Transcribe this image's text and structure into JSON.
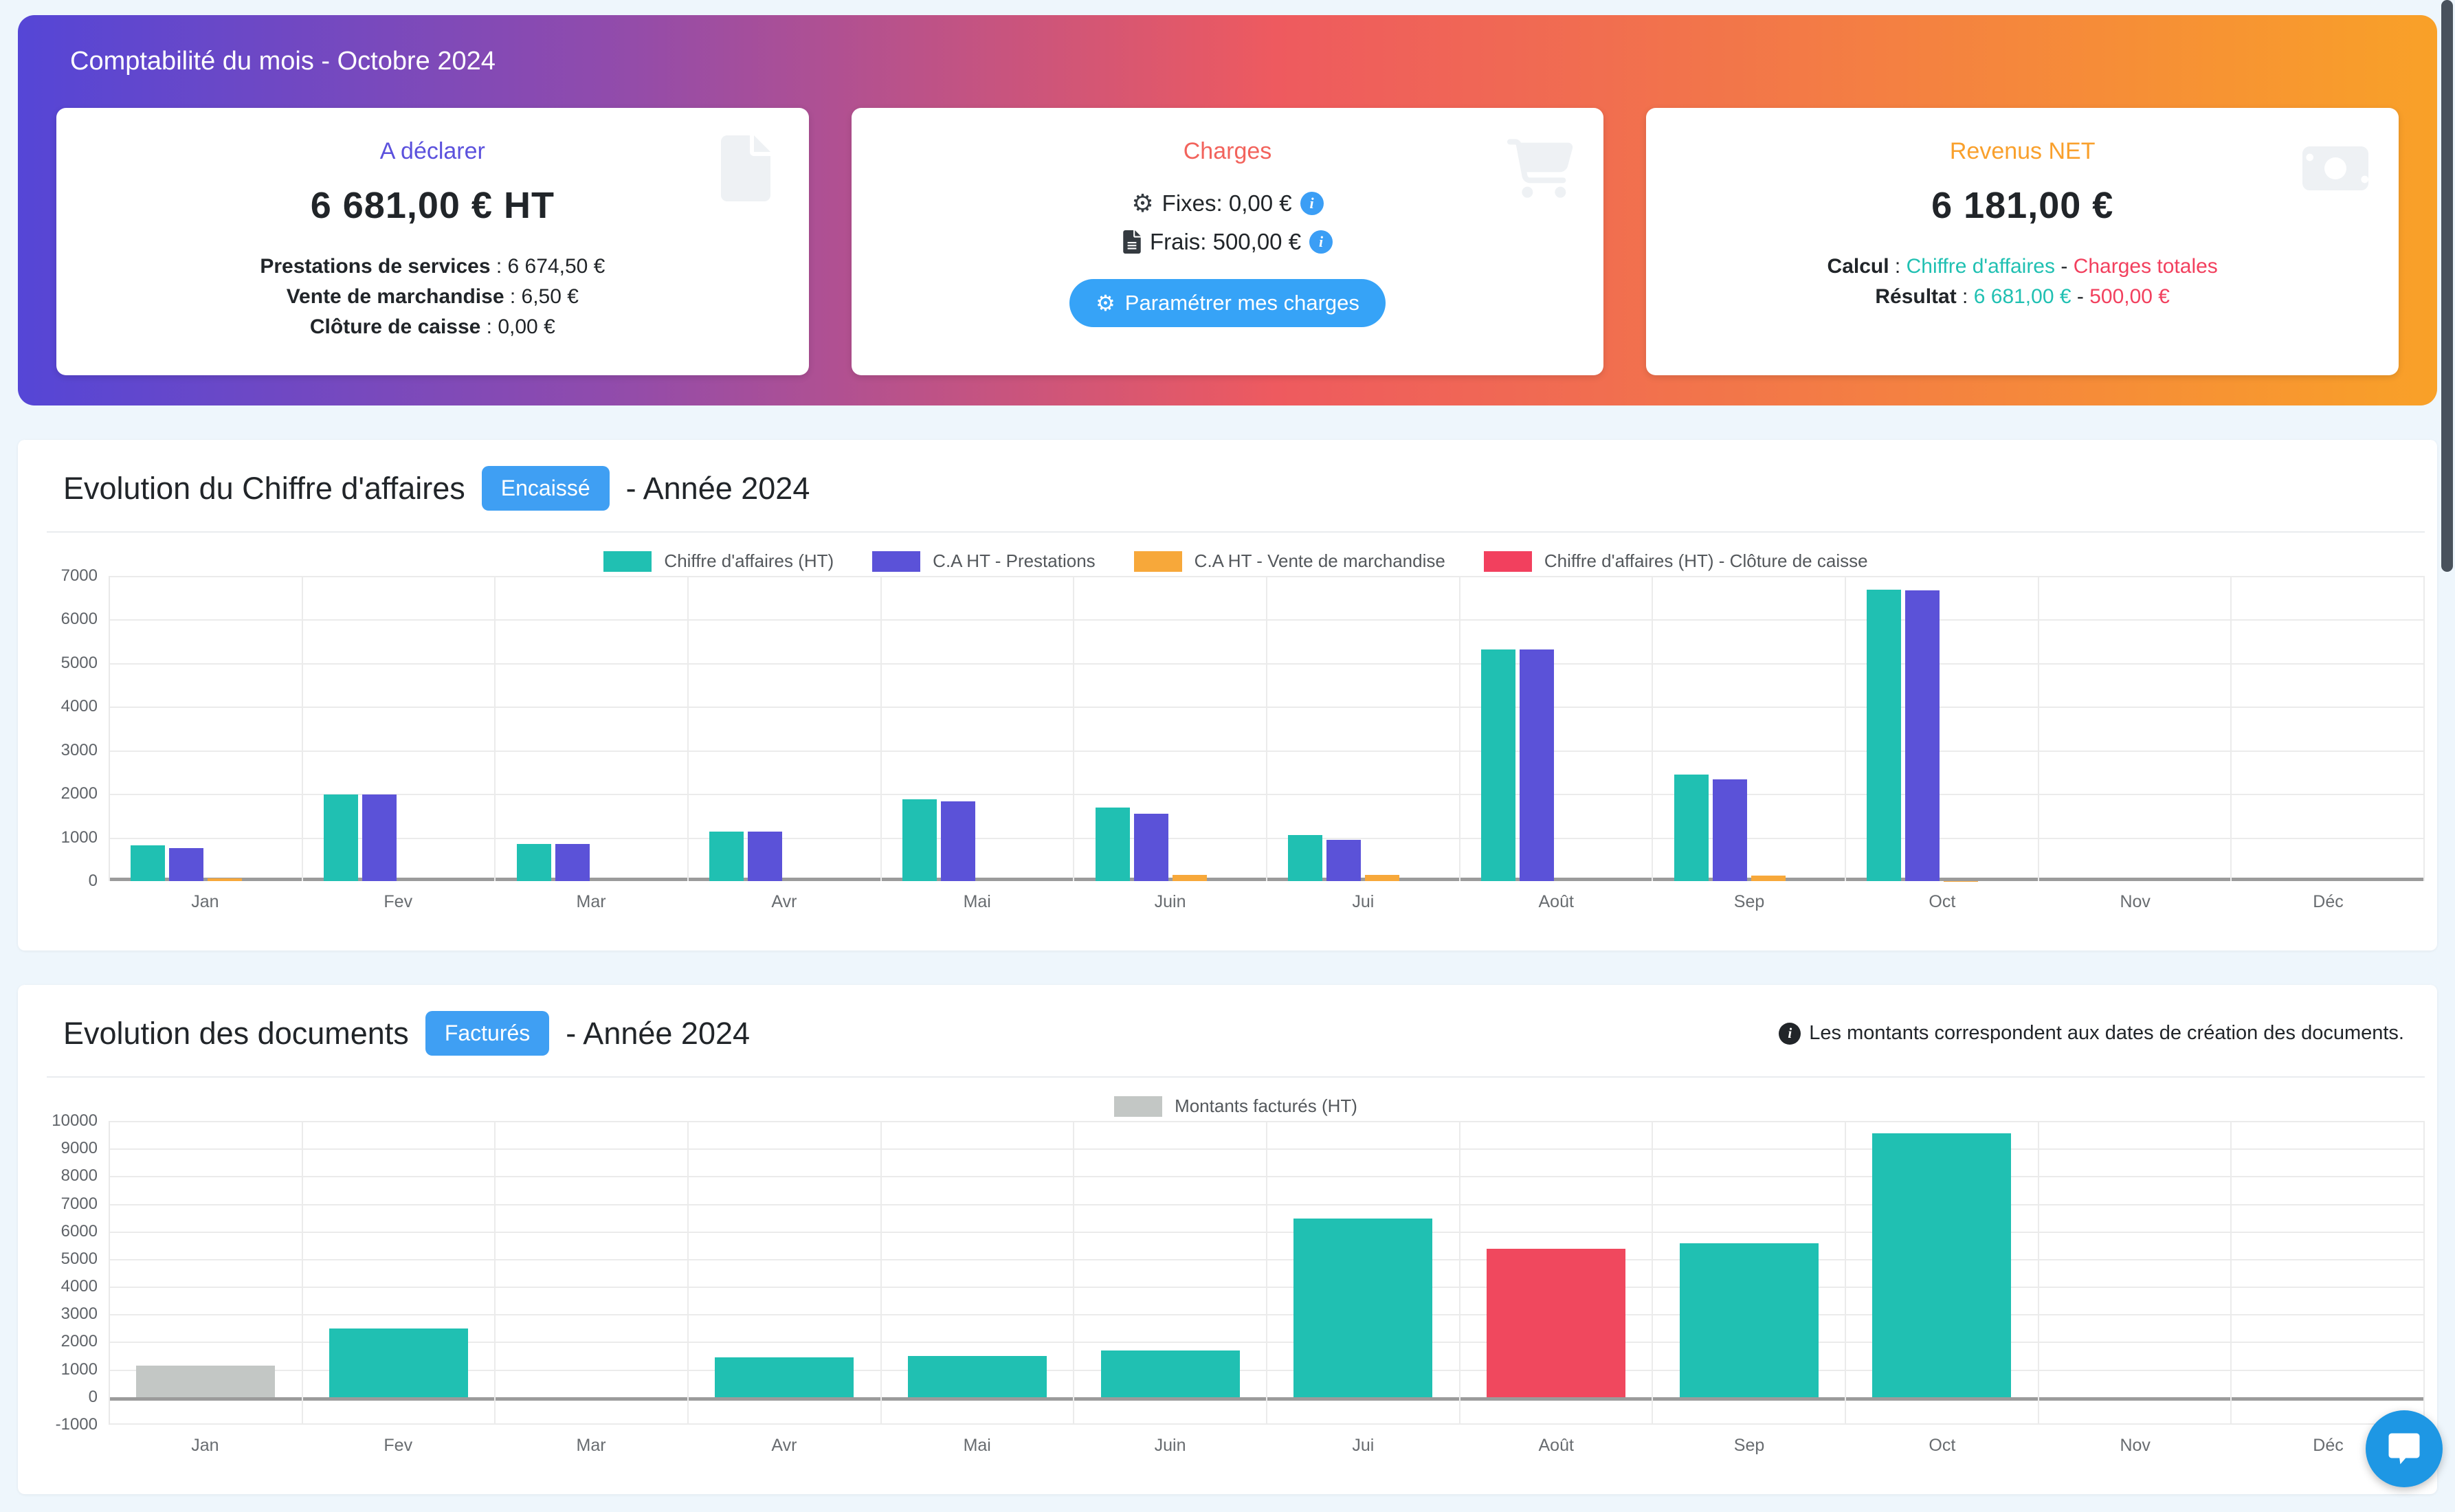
{
  "sep": " : ",
  "hero": {
    "title": "Comptabilité du mois - Octobre 2024",
    "gradient": [
      "#5546d6",
      "#8f4bad",
      "#ee5a5f",
      "#f9a128"
    ],
    "cards": {
      "declare": {
        "title": "A déclarer",
        "title_color": "#5b51dd",
        "value": "6 681,00 € HT",
        "icon": "file-icon",
        "lines": [
          {
            "label": "Prestations de services",
            "value": "6 674,50 €"
          },
          {
            "label": "Vente de marchandise",
            "value": "6,50 €"
          },
          {
            "label": "Clôture de caisse",
            "value": "0,00 €"
          }
        ]
      },
      "charges": {
        "title": "Charges",
        "title_color": "#f2635c",
        "icon": "cart-icon",
        "fixes": "Fixes: 0,00 €",
        "frais": "Frais: 500,00 €",
        "button_label": "Paramétrer mes charges",
        "button_color": "#36a3f7"
      },
      "revenus": {
        "title": "Revenus NET",
        "title_color": "#f9a02c",
        "value": "6 181,00 €",
        "icon": "banknote-icon",
        "calcul": {
          "label": "Calcul",
          "a": "Chiffre d'affaires",
          "dash": "-",
          "b": "Charges totales"
        },
        "resultat": {
          "label": "Résultat",
          "a": "6 681,00 €",
          "dash": "-",
          "b": "500,00 €"
        }
      }
    }
  },
  "sections": [
    {
      "title": "Evolution du Chiffre d'affaires",
      "badge": "Encaissé",
      "suffix": "- Année 2024",
      "note": ""
    },
    {
      "title": "Evolution des documents",
      "badge": "Facturés",
      "suffix": "- Année 2024",
      "note": "Les montants correspondent aux dates de création des documents."
    }
  ],
  "chart_data": [
    {
      "type": "bar",
      "title": "Evolution du Chiffre d'affaires - Année 2024",
      "categories": [
        "Jan",
        "Fev",
        "Mar",
        "Avr",
        "Mai",
        "Juin",
        "Jui",
        "Août",
        "Sep",
        "Oct",
        "Nov",
        "Déc"
      ],
      "ylim": [
        0,
        7000
      ],
      "ytick_step": 1000,
      "grid": true,
      "legend_position": "top",
      "series": [
        {
          "name": "Chiffre d'affaires (HT)",
          "color": "#20c0b2",
          "values": [
            820,
            1980,
            850,
            1130,
            1870,
            1680,
            1060,
            5320,
            2450,
            6681,
            0,
            0
          ]
        },
        {
          "name": "C.A HT - Prestations",
          "color": "#5b52d8",
          "values": [
            760,
            1980,
            850,
            1130,
            1830,
            1550,
            940,
            5320,
            2330,
            6674,
            0,
            0
          ]
        },
        {
          "name": "C.A HT - Vente de marchandise",
          "color": "#f7a83a",
          "values": [
            60,
            0,
            0,
            0,
            0,
            150,
            150,
            0,
            120,
            7,
            0,
            0
          ]
        },
        {
          "name": "Chiffre d'affaires (HT) - Clôture de caisse",
          "color": "#f2405e",
          "values": [
            0,
            0,
            0,
            0,
            0,
            0,
            0,
            0,
            0,
            0,
            0,
            0
          ]
        }
      ]
    },
    {
      "type": "bar",
      "title": "Evolution des documents - Année 2024",
      "categories": [
        "Jan",
        "Fev",
        "Mar",
        "Avr",
        "Mai",
        "Juin",
        "Jui",
        "Août",
        "Sep",
        "Oct",
        "Nov",
        "Déc"
      ],
      "ylim": [
        -1000,
        10000
      ],
      "ytick_step": 1000,
      "grid": true,
      "legend_position": "top",
      "series": [
        {
          "name": "Montants facturés (HT)",
          "color": "#c3c7c5",
          "values": [
            1150,
            2480,
            0,
            1450,
            1500,
            1700,
            6470,
            5380,
            5580,
            9550,
            0,
            0
          ],
          "bar_colors": [
            "#c3c7c5",
            "#20c0b2",
            "#20c0b2",
            "#20c0b2",
            "#20c0b2",
            "#20c0b2",
            "#20c0b2",
            "#f0485e",
            "#20c0b2",
            "#20c0b2",
            "#20c0b2",
            "#20c0b2"
          ]
        }
      ]
    }
  ]
}
